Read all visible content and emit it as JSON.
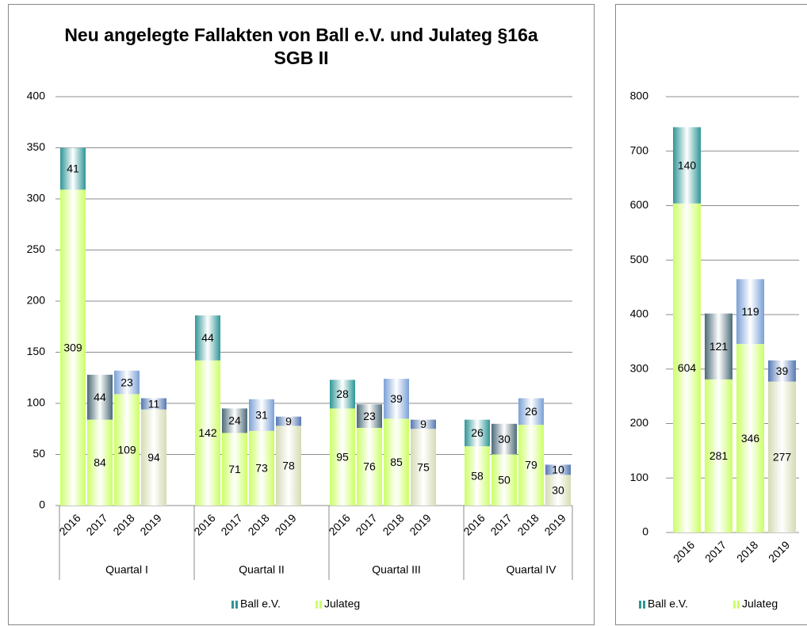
{
  "chart_data": [
    {
      "type": "bar",
      "stacked": true,
      "title": "Neu angelegte Fallakten von Ball e.V. und Julateg §16a SGB II",
      "categories": [
        "2016",
        "2017",
        "2018",
        "2019",
        "2016",
        "2017",
        "2018",
        "2019",
        "2016",
        "2017",
        "2018",
        "2019",
        "2016",
        "2017",
        "2018",
        "2019"
      ],
      "groups": [
        "Quartal I",
        "Quartal II",
        "Quartal III",
        "Quartal IV"
      ],
      "series": [
        {
          "name": "Julateg",
          "color": "#ccff66",
          "colors": [
            "#ccff66",
            "#ccff66",
            "#ccff66",
            "#d4dcb4",
            "#ccff66",
            "#ccff66",
            "#ccff66",
            "#d4dcb4",
            "#ccff66",
            "#ccff66",
            "#ccff66",
            "#d4dcb4",
            "#ccff66",
            "#ccff66",
            "#ccff66",
            "#d4dcb4"
          ],
          "values": [
            309,
            84,
            109,
            94,
            142,
            71,
            73,
            78,
            95,
            76,
            85,
            75,
            58,
            50,
            79,
            30
          ]
        },
        {
          "name": "Ball e.V.",
          "color": "#2f9696",
          "colors": [
            "#2f9696",
            "#4b6b78",
            "#7aa0d6",
            "#5578b4",
            "#2f9696",
            "#4b6b78",
            "#7aa0d6",
            "#5578b4",
            "#2f9696",
            "#4b6b78",
            "#7aa0d6",
            "#5578b4",
            "#2f9696",
            "#4b6b78",
            "#7aa0d6",
            "#5578b4"
          ],
          "values": [
            41,
            44,
            23,
            11,
            44,
            24,
            31,
            9,
            28,
            23,
            39,
            9,
            26,
            30,
            26,
            10
          ]
        }
      ],
      "ylim": [
        0,
        400
      ],
      "yticks": [
        0,
        50,
        100,
        150,
        200,
        250,
        300,
        350,
        400
      ],
      "grid": true,
      "legend": "bottom"
    },
    {
      "type": "bar",
      "stacked": true,
      "categories": [
        "2016",
        "2017",
        "2018",
        "2019"
      ],
      "series": [
        {
          "name": "Julateg",
          "color": "#ccff66",
          "colors": [
            "#ccff66",
            "#ccff66",
            "#ccff66",
            "#d4dcb4"
          ],
          "values": [
            604,
            281,
            346,
            277
          ]
        },
        {
          "name": "Ball e.V.",
          "color": "#2f9696",
          "colors": [
            "#2f9696",
            "#4b6b78",
            "#7aa0d6",
            "#5578b4"
          ],
          "values": [
            140,
            121,
            119,
            39
          ]
        }
      ],
      "ylim": [
        0,
        800
      ],
      "yticks": [
        0,
        100,
        200,
        300,
        400,
        500,
        600,
        700,
        800
      ],
      "grid": true,
      "legend": "bottom"
    }
  ]
}
